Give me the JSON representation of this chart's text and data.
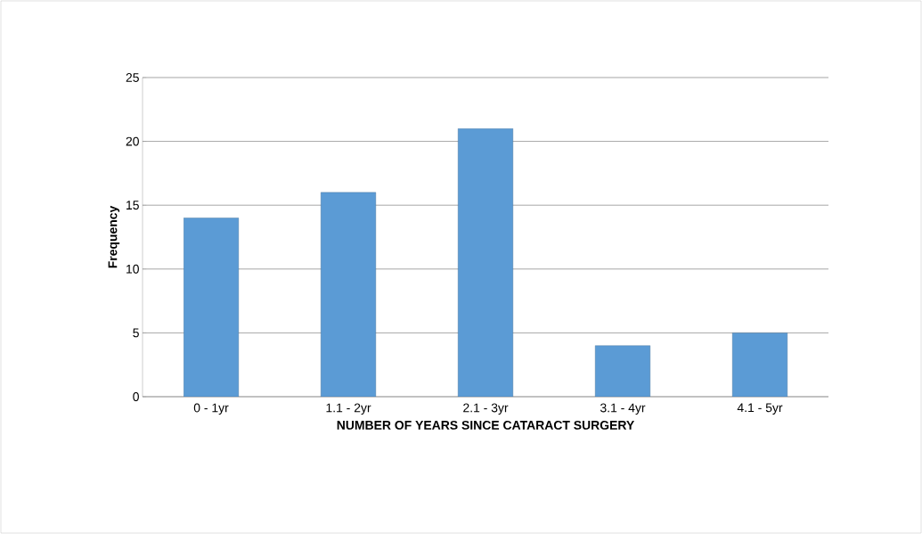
{
  "chart_data": {
    "type": "bar",
    "xlabel": "NUMBER OF YEARS SINCE CATARACT SURGERY",
    "ylabel": "Frequency",
    "categories": [
      "0 - 1yr",
      "1.1 - 2yr",
      "2.1 - 3yr",
      "3.1 - 4yr",
      "4.1 - 5yr"
    ],
    "values": [
      14,
      16,
      21,
      4,
      5
    ],
    "color": "#5b9bd5",
    "ylim": [
      0,
      25
    ],
    "yticks": [
      0,
      5,
      10,
      15,
      20,
      25
    ],
    "grid": "y"
  }
}
